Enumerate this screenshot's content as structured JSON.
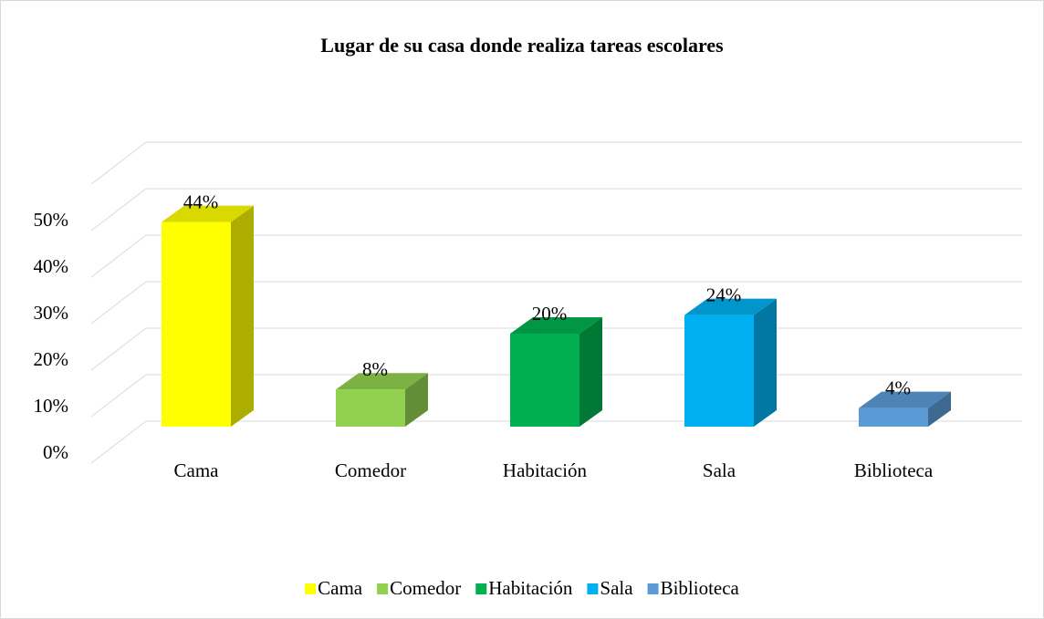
{
  "chart_data": {
    "type": "bar3d",
    "title": "Lugar de su casa donde realiza tareas escolares",
    "categories": [
      "Cama",
      "Comedor",
      "Habitación",
      "Sala",
      "Biblioteca"
    ],
    "values": [
      44,
      8,
      20,
      24,
      4
    ],
    "value_labels": [
      "44%",
      "8%",
      "20%",
      "24%",
      "4%"
    ],
    "colors": [
      "#ffff00",
      "#92d050",
      "#00b050",
      "#00b0f0",
      "#5b9bd5"
    ],
    "ylim": [
      0,
      60
    ],
    "yticks": [
      {
        "value": 0,
        "label": "0%"
      },
      {
        "value": 10,
        "label": "10%"
      },
      {
        "value": 20,
        "label": "20%"
      },
      {
        "value": 30,
        "label": "30%"
      },
      {
        "value": 40,
        "label": "40%"
      },
      {
        "value": 50,
        "label": "50%"
      }
    ],
    "grid": true,
    "legend": "bottom"
  }
}
